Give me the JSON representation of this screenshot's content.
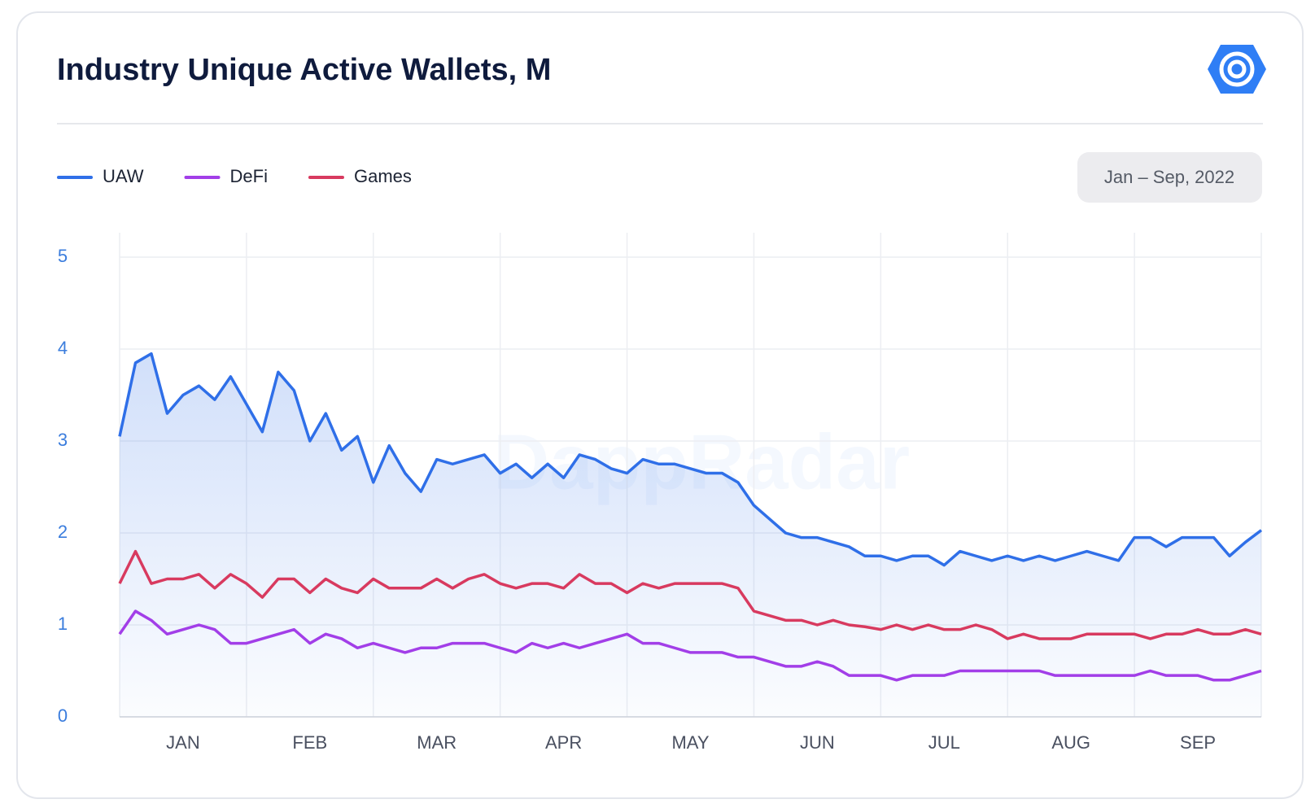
{
  "chart_data": {
    "type": "line",
    "title": "Industry Unique Active Wallets, M",
    "date_range": "Jan – Sep, 2022",
    "watermark": "DappRadar",
    "categories": [
      null,
      null,
      null,
      null,
      "JAN",
      null,
      null,
      null,
      null,
      null,
      null,
      null,
      "FEB",
      null,
      null,
      null,
      null,
      null,
      null,
      null,
      "MAR",
      null,
      null,
      null,
      null,
      null,
      null,
      null,
      "APR",
      null,
      null,
      null,
      null,
      null,
      null,
      null,
      "MAY",
      null,
      null,
      null,
      null,
      null,
      null,
      null,
      "JUN",
      null,
      null,
      null,
      null,
      null,
      null,
      null,
      "JUL",
      null,
      null,
      null,
      null,
      null,
      null,
      null,
      "AUG",
      null,
      null,
      null,
      null,
      null,
      null,
      null,
      "SEP",
      null,
      null,
      null,
      null
    ],
    "series": [
      {
        "name": "UAW",
        "color": "#2f6fe8",
        "area": true,
        "values": [
          3.05,
          3.85,
          3.95,
          3.3,
          3.5,
          3.6,
          3.45,
          3.7,
          3.4,
          3.1,
          3.75,
          3.55,
          3.0,
          3.3,
          2.9,
          3.05,
          2.55,
          2.95,
          2.65,
          2.45,
          2.8,
          2.75,
          2.8,
          2.85,
          2.65,
          2.75,
          2.6,
          2.75,
          2.6,
          2.85,
          2.8,
          2.7,
          2.65,
          2.8,
          2.75,
          2.75,
          2.7,
          2.65,
          2.65,
          2.55,
          2.3,
          2.15,
          2.0,
          1.95,
          1.95,
          1.9,
          1.85,
          1.75,
          1.75,
          1.7,
          1.75,
          1.75,
          1.65,
          1.8,
          1.75,
          1.7,
          1.75,
          1.7,
          1.75,
          1.7,
          1.75,
          1.8,
          1.75,
          1.7,
          1.95,
          1.95,
          1.85,
          1.95,
          1.95,
          1.95,
          1.75,
          1.9,
          2.03
        ]
      },
      {
        "name": "DeFi",
        "color": "#a23ee8",
        "values": [
          0.9,
          1.15,
          1.05,
          0.9,
          0.95,
          1.0,
          0.95,
          0.8,
          0.8,
          0.85,
          0.9,
          0.95,
          0.8,
          0.9,
          0.85,
          0.75,
          0.8,
          0.75,
          0.7,
          0.75,
          0.75,
          0.8,
          0.8,
          0.8,
          0.75,
          0.7,
          0.8,
          0.75,
          0.8,
          0.75,
          0.8,
          0.85,
          0.9,
          0.8,
          0.8,
          0.75,
          0.7,
          0.7,
          0.7,
          0.65,
          0.65,
          0.6,
          0.55,
          0.55,
          0.6,
          0.55,
          0.45,
          0.45,
          0.45,
          0.4,
          0.45,
          0.45,
          0.45,
          0.5,
          0.5,
          0.5,
          0.5,
          0.5,
          0.5,
          0.45,
          0.45,
          0.45,
          0.45,
          0.45,
          0.45,
          0.5,
          0.45,
          0.45,
          0.45,
          0.4,
          0.4,
          0.45,
          0.5
        ]
      },
      {
        "name": "Games",
        "color": "#d83a5f",
        "values": [
          1.45,
          1.8,
          1.45,
          1.5,
          1.5,
          1.55,
          1.4,
          1.55,
          1.45,
          1.3,
          1.5,
          1.5,
          1.35,
          1.5,
          1.4,
          1.35,
          1.5,
          1.4,
          1.4,
          1.4,
          1.5,
          1.4,
          1.5,
          1.55,
          1.45,
          1.4,
          1.45,
          1.45,
          1.4,
          1.55,
          1.45,
          1.45,
          1.35,
          1.45,
          1.4,
          1.45,
          1.45,
          1.45,
          1.45,
          1.4,
          1.15,
          1.1,
          1.05,
          1.05,
          1.0,
          1.05,
          1.0,
          0.98,
          0.95,
          1.0,
          0.95,
          1.0,
          0.95,
          0.95,
          1.0,
          0.95,
          0.85,
          0.9,
          0.85,
          0.85,
          0.85,
          0.9,
          0.9,
          0.9,
          0.9,
          0.85,
          0.9,
          0.9,
          0.95,
          0.9,
          0.9,
          0.95,
          0.9
        ]
      }
    ],
    "ylim": [
      0,
      5
    ],
    "yticks": [
      0,
      1,
      2,
      3,
      4,
      5
    ],
    "grid": true
  }
}
